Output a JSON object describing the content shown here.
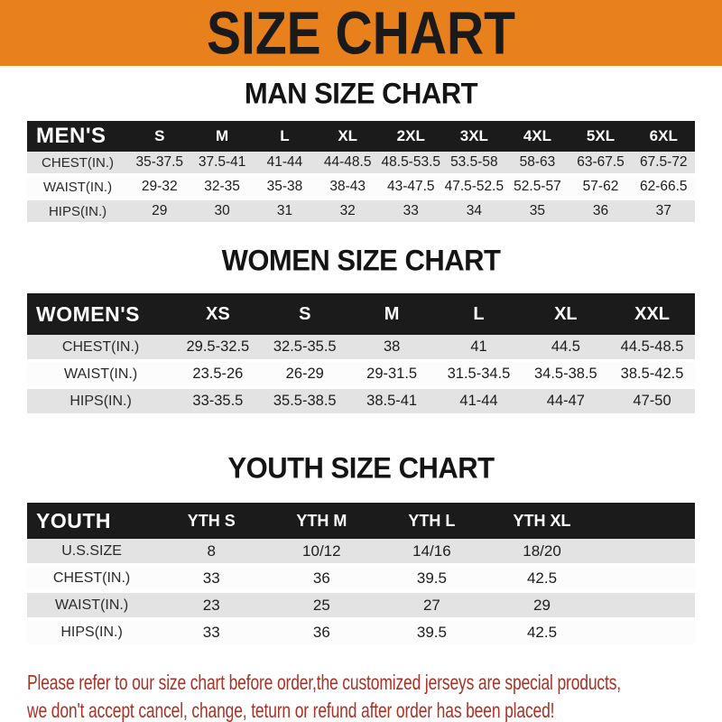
{
  "banner": {
    "title": "SIZE CHART"
  },
  "colors": {
    "banner_bg": "#E8811B",
    "banner_text": "#1A1A1A",
    "table_header_bg": "#1B1B1B",
    "row_gray": "#E3E3E3",
    "row_white": "#FCFCFC",
    "footer_red": "#A93226"
  },
  "chart_data": [
    {
      "type": "table",
      "title": "MAN SIZE CHART",
      "label": "MEN'S",
      "columns": [
        "S",
        "M",
        "L",
        "XL",
        "2XL",
        "3XL",
        "4XL",
        "5XL",
        "6XL"
      ],
      "rows": [
        {
          "label": "CHEST(IN.)",
          "values": [
            "35-37.5",
            "37.5-41",
            "41-44",
            "44-48.5",
            "48.5-53.5",
            "53.5-58",
            "58-63",
            "63-67.5",
            "67.5-72"
          ]
        },
        {
          "label": "WAIST(IN.)",
          "values": [
            "29-32",
            "32-35",
            "35-38",
            "38-43",
            "43-47.5",
            "47.5-52.5",
            "52.5-57",
            "57-62",
            "62-66.5"
          ]
        },
        {
          "label": "HIPS(IN.)",
          "values": [
            "29",
            "30",
            "31",
            "32",
            "33",
            "34",
            "35",
            "36",
            "37"
          ]
        }
      ]
    },
    {
      "type": "table",
      "title": "WOMEN SIZE CHART",
      "label": "WOMEN'S",
      "columns": [
        "XS",
        "S",
        "M",
        "L",
        "XL",
        "XXL"
      ],
      "rows": [
        {
          "label": "CHEST(IN.)",
          "values": [
            "29.5-32.5",
            "32.5-35.5",
            "38",
            "41",
            "44.5",
            "44.5-48.5"
          ]
        },
        {
          "label": "WAIST(IN.)",
          "values": [
            "23.5-26",
            "26-29",
            "29-31.5",
            "31.5-34.5",
            "34.5-38.5",
            "38.5-42.5"
          ]
        },
        {
          "label": "HIPS(IN.)",
          "values": [
            "33-35.5",
            "35.5-38.5",
            "38.5-41",
            "41-44",
            "44-47",
            "47-50"
          ]
        }
      ]
    },
    {
      "type": "table",
      "title": "YOUTH SIZE CHART",
      "label": "YOUTH",
      "columns": [
        "YTH S",
        "YTH M",
        "YTH L",
        "YTH XL"
      ],
      "rows": [
        {
          "label": "U.S.SIZE",
          "values": [
            "8",
            "10/12",
            "14/16",
            "18/20"
          ]
        },
        {
          "label": "CHEST(IN.)",
          "values": [
            "33",
            "36",
            "39.5",
            "42.5"
          ]
        },
        {
          "label": "WAIST(IN.)",
          "values": [
            "23",
            "25",
            "27",
            "29"
          ]
        },
        {
          "label": "HIPS(IN.)",
          "values": [
            "33",
            "36",
            "39.5",
            "42.5"
          ]
        }
      ]
    }
  ],
  "footer": {
    "line1": "Please refer to our size chart before order,the customized jerseys are special products,",
    "line2": "we don't accept cancel, change, teturn or refund after order has been placed!"
  }
}
